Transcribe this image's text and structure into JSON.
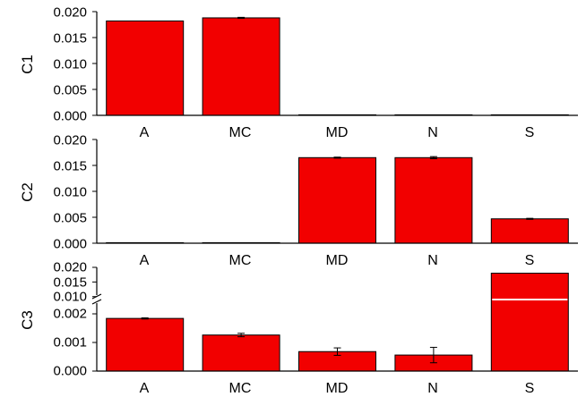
{
  "colors": {
    "bar_fill": "#f20000",
    "bar_stroke": "#000000",
    "axis": "#000000",
    "break_line": "#ffffff"
  },
  "chart_data": [
    {
      "type": "bar",
      "ylabel": "C1",
      "categories": [
        "A",
        "MC",
        "MD",
        "N",
        "S"
      ],
      "values": [
        0.0182,
        0.0188,
        0.0001,
        0.0,
        0.0
      ],
      "errors": [
        0.0,
        0.0001,
        0.0,
        0.0,
        0.0
      ],
      "ylim": [
        0,
        0.02
      ],
      "yticks": [
        "0.000",
        "0.005",
        "0.010",
        "0.015",
        "0.020"
      ],
      "grid": false
    },
    {
      "type": "bar",
      "ylabel": "C2",
      "categories": [
        "A",
        "MC",
        "MD",
        "N",
        "S"
      ],
      "values": [
        0.0,
        0.0,
        0.0165,
        0.0165,
        0.0047
      ],
      "errors": [
        0.0,
        0.0,
        0.0001,
        0.0002,
        0.0001
      ],
      "ylim": [
        0,
        0.02
      ],
      "yticks": [
        "0.000",
        "0.005",
        "0.010",
        "0.015",
        "0.020"
      ],
      "grid": false
    },
    {
      "type": "bar",
      "ylabel": "C3",
      "categories": [
        "A",
        "MC",
        "MD",
        "N",
        "S"
      ],
      "values": [
        0.00184,
        0.00126,
        0.00068,
        0.00056,
        0.018
      ],
      "errors": [
        2e-05,
        6e-05,
        0.00013,
        0.00027,
        0.0
      ],
      "axis_break": true,
      "lower_ylim": [
        0,
        0.0025
      ],
      "upper_ylim": [
        0.009,
        0.02
      ],
      "yticks_lower": [
        "0.000",
        "0.001",
        "0.002"
      ],
      "yticks_upper": [
        "0.010",
        "0.015",
        "0.020"
      ],
      "grid": false
    }
  ]
}
